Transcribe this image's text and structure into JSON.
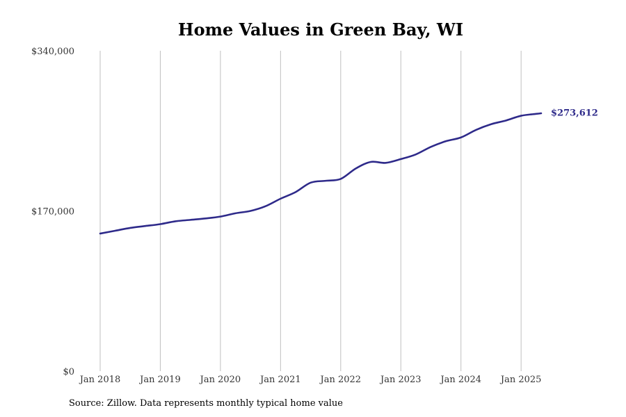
{
  "chart_data": {
    "type": "line",
    "title": "Home Values in Green Bay, WI",
    "ylim": [
      0,
      340000
    ],
    "yticks": [
      0,
      170000,
      340000
    ],
    "ytick_labels": [
      "$0",
      "$170,000",
      "$340,000"
    ],
    "xlim": [
      "2018-01",
      "2025-06"
    ],
    "xticks": [
      "2018-01",
      "2019-01",
      "2020-01",
      "2021-01",
      "2022-01",
      "2023-01",
      "2024-01",
      "2025-01"
    ],
    "xtick_labels": [
      "Jan 2018",
      "Jan 2019",
      "Jan 2020",
      "Jan 2021",
      "Jan 2022",
      "Jan 2023",
      "Jan 2024",
      "Jan 2025"
    ],
    "grid": "vertical",
    "series": [
      {
        "color": "#2e2a8a",
        "end_label": "$273,612",
        "points": [
          [
            "2018-01",
            146000
          ],
          [
            "2018-04",
            149000
          ],
          [
            "2018-07",
            152000
          ],
          [
            "2018-10",
            154000
          ],
          [
            "2019-01",
            156000
          ],
          [
            "2019-04",
            159000
          ],
          [
            "2019-07",
            160500
          ],
          [
            "2019-10",
            162000
          ],
          [
            "2020-01",
            164000
          ],
          [
            "2020-04",
            167500
          ],
          [
            "2020-07",
            170000
          ],
          [
            "2020-10",
            175000
          ],
          [
            "2021-01",
            183000
          ],
          [
            "2021-04",
            190000
          ],
          [
            "2021-07",
            200000
          ],
          [
            "2021-10",
            202000
          ],
          [
            "2022-01",
            204000
          ],
          [
            "2022-04",
            215000
          ],
          [
            "2022-07",
            222000
          ],
          [
            "2022-10",
            221000
          ],
          [
            "2023-01",
            225000
          ],
          [
            "2023-04",
            230000
          ],
          [
            "2023-07",
            238000
          ],
          [
            "2023-10",
            244000
          ],
          [
            "2024-01",
            248000
          ],
          [
            "2024-04",
            256000
          ],
          [
            "2024-07",
            262000
          ],
          [
            "2024-10",
            266000
          ],
          [
            "2025-01",
            271000
          ],
          [
            "2025-04",
            273000
          ],
          [
            "2025-05",
            273612
          ]
        ]
      }
    ]
  },
  "source": "Source: Zillow. Data represents monthly typical home value"
}
